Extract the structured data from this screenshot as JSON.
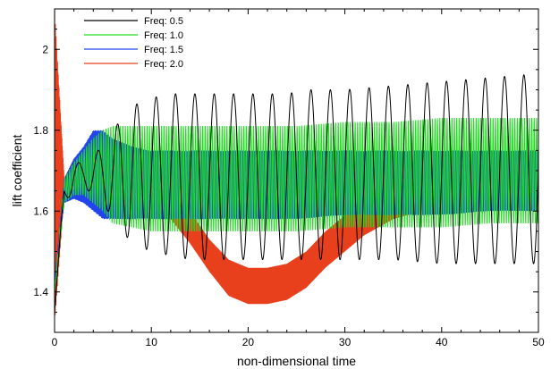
{
  "chart_data": {
    "type": "line",
    "xlabel": "non-dimensional time",
    "ylabel": "lift coefficient",
    "xlim": [
      0,
      50
    ],
    "ylim": [
      1.3,
      2.1
    ],
    "xticks": [
      0,
      10,
      20,
      30,
      40,
      50
    ],
    "xtick_labels": [
      "0",
      "10",
      "20",
      "30",
      "40",
      "50"
    ],
    "yticks": [
      1.4,
      1.6,
      1.8,
      2.0
    ],
    "ytick_labels": [
      "1.4",
      "1.6",
      "1.8",
      "2"
    ],
    "grid": false,
    "legend_position": "top-left",
    "series": [
      {
        "name": "Freq: 0.5",
        "color": "#000000",
        "dt": 0.1,
        "envelope_time": [
          0,
          1,
          2,
          3,
          4,
          5,
          6,
          8,
          10,
          12,
          14,
          16,
          18,
          20,
          22,
          24,
          26,
          28,
          30,
          35,
          40,
          45,
          50
        ],
        "envelope_upper": [
          1.35,
          1.68,
          1.72,
          1.72,
          1.74,
          1.76,
          1.8,
          1.86,
          1.88,
          1.89,
          1.89,
          1.89,
          1.89,
          1.89,
          1.89,
          1.89,
          1.9,
          1.9,
          1.9,
          1.91,
          1.92,
          1.93,
          1.94
        ],
        "envelope_lower": [
          1.35,
          1.62,
          1.65,
          1.66,
          1.64,
          1.62,
          1.58,
          1.52,
          1.5,
          1.49,
          1.48,
          1.48,
          1.48,
          1.48,
          1.48,
          1.48,
          1.48,
          1.48,
          1.48,
          1.48,
          1.47,
          1.47,
          1.47
        ]
      },
      {
        "name": "Freq: 1.0",
        "color": "#22dd22",
        "dt": 0.05,
        "envelope_time": [
          0,
          1,
          2,
          3,
          4,
          5,
          6,
          8,
          10,
          15,
          20,
          25,
          30,
          35,
          40,
          45,
          50
        ],
        "envelope_upper": [
          1.4,
          1.68,
          1.72,
          1.75,
          1.78,
          1.8,
          1.81,
          1.81,
          1.81,
          1.81,
          1.81,
          1.81,
          1.82,
          1.82,
          1.83,
          1.83,
          1.83
        ],
        "envelope_lower": [
          1.4,
          1.62,
          1.64,
          1.64,
          1.62,
          1.6,
          1.57,
          1.56,
          1.55,
          1.55,
          1.55,
          1.55,
          1.56,
          1.56,
          1.56,
          1.57,
          1.57
        ]
      },
      {
        "name": "Freq: 1.5",
        "color": "#2244ee",
        "dt": 0.04,
        "envelope_time": [
          0,
          1,
          2,
          3,
          4,
          5,
          6,
          8,
          10,
          15,
          20,
          25,
          30,
          35,
          40,
          45,
          50
        ],
        "envelope_upper": [
          1.42,
          1.68,
          1.73,
          1.76,
          1.8,
          1.8,
          1.78,
          1.76,
          1.75,
          1.75,
          1.75,
          1.75,
          1.75,
          1.75,
          1.75,
          1.75,
          1.75
        ],
        "envelope_lower": [
          1.42,
          1.62,
          1.63,
          1.62,
          1.6,
          1.58,
          1.58,
          1.58,
          1.58,
          1.58,
          1.58,
          1.58,
          1.59,
          1.59,
          1.59,
          1.6,
          1.6
        ]
      },
      {
        "name": "Freq: 2.0",
        "color": "#e8401c",
        "dt": 0.03,
        "envelope_time": [
          0,
          1,
          2,
          3,
          4,
          5,
          6,
          7,
          8,
          10,
          12,
          14,
          16,
          18,
          20,
          22,
          24,
          26,
          28,
          30,
          32,
          35,
          38,
          41,
          44,
          47,
          50
        ],
        "envelope_upper": [
          2.1,
          1.68,
          1.73,
          1.75,
          1.76,
          1.76,
          1.76,
          1.75,
          1.73,
          1.69,
          1.65,
          1.6,
          1.53,
          1.48,
          1.46,
          1.46,
          1.47,
          1.5,
          1.55,
          1.59,
          1.62,
          1.65,
          1.67,
          1.68,
          1.68,
          1.68,
          1.68
        ],
        "envelope_lower": [
          1.32,
          1.64,
          1.67,
          1.69,
          1.7,
          1.71,
          1.7,
          1.69,
          1.67,
          1.63,
          1.58,
          1.52,
          1.45,
          1.39,
          1.37,
          1.37,
          1.38,
          1.41,
          1.46,
          1.5,
          1.54,
          1.58,
          1.6,
          1.61,
          1.62,
          1.62,
          1.62
        ]
      }
    ]
  }
}
